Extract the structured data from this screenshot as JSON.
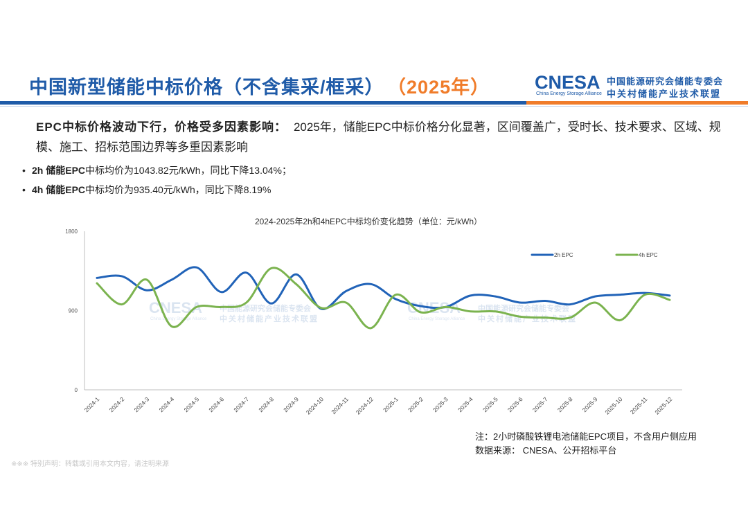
{
  "header": {
    "title": "中国新型储能中标价格（不含集采/框采）",
    "year_tag": "（2025年）",
    "logo_mark": "CNESA",
    "logo_sub": "China Energy Storage Alliance",
    "org_line1": "中国能源研究会储能专委会",
    "org_line2": "中关村储能产业技术联盟"
  },
  "intro": {
    "lead": "EPC中标价格波动下行，价格受多因素影响：",
    "body": "2025年，储能EPC中标价格分化显著，区间覆盖广，受时长、技术要求、区域、规模、施工、招标范围边界等多重因素影响"
  },
  "bullets": [
    {
      "bold": "2h 储能EPC",
      "text": "中标均价为1043.82元/kWh，同比下降13.04%；"
    },
    {
      "bold": "4h 储能EPC",
      "text": "中标均价为935.40元/kWh，同比下降8.19%"
    }
  ],
  "notes": {
    "line1": "注：2小时磷酸铁锂电池储能EPC项目，不含用户侧应用",
    "line2": "数据来源：  CNESA、公开招标平台"
  },
  "disclaimer": "※※※ 特别声明：转载或引用本文内容，请注明来源",
  "watermark": {
    "mark": "CNESA",
    "sub": "China Energy Storage Alliance",
    "org1": "中国能源研究会储能专委会",
    "org2": "中关村储能产业技术联盟"
  },
  "colors": {
    "blue": "#1f5ba8",
    "orange": "#f07c2a",
    "series_2h": "#2163b8",
    "series_4h": "#7bb34f",
    "axis": "#bfbfbf"
  },
  "chart_data": {
    "type": "line",
    "title": "2024-2025年2h和4hEPC中标均价变化趋势（单位：元/kWh）",
    "xlabel": "",
    "ylabel": "",
    "ylim": [
      0,
      1800
    ],
    "yticks": [
      0,
      900,
      1800
    ],
    "legend_position": "top-right",
    "categories": [
      "2024-1",
      "2024-2",
      "2024-3",
      "2024-4",
      "2024-5",
      "2024-6",
      "2024-7",
      "2024-8",
      "2024-9",
      "2024-10",
      "2024-11",
      "2024-12",
      "2025-1",
      "2025-2",
      "2025-3",
      "2025-4",
      "2025-5",
      "2025-6",
      "2025-7",
      "2025-8",
      "2025-9",
      "2025-10",
      "2025-11",
      "2025-12"
    ],
    "series": [
      {
        "name": "2h EPC",
        "color": "#2163b8",
        "values": [
          1270,
          1290,
          1130,
          1250,
          1390,
          1110,
          1330,
          980,
          1310,
          920,
          1120,
          1200,
          1030,
          950,
          940,
          1070,
          1060,
          990,
          1010,
          970,
          1060,
          1080,
          1100,
          1070
        ]
      },
      {
        "name": "4h EPC",
        "color": "#7bb34f",
        "values": [
          1210,
          970,
          1250,
          720,
          940,
          940,
          990,
          1380,
          1200,
          930,
          990,
          700,
          1080,
          880,
          940,
          890,
          890,
          830,
          820,
          820,
          990,
          790,
          1080,
          1020
        ]
      }
    ]
  }
}
